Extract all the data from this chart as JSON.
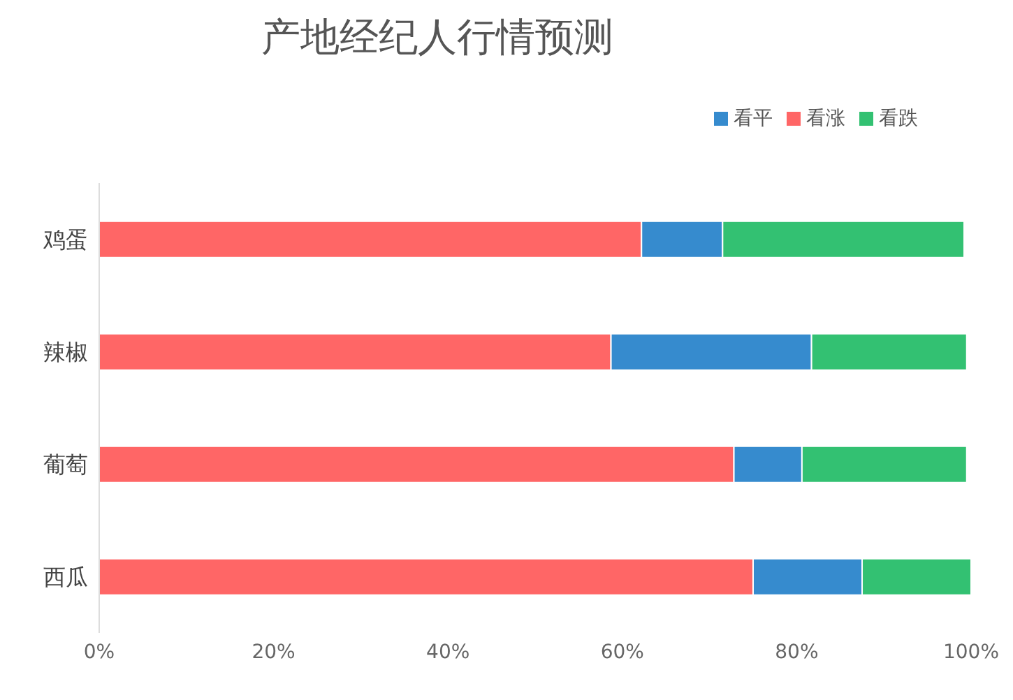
{
  "chart_data": {
    "type": "bar",
    "title": "产地经纪人行情预测",
    "orientation": "horizontal",
    "stacked": true,
    "categories": [
      "鸡蛋",
      "辣椒",
      "葡萄",
      "西瓜"
    ],
    "series": [
      {
        "name": "看涨",
        "color": "#ff6666",
        "values": [
          62.2,
          58.7,
          72.8,
          75
        ]
      },
      {
        "name": "看平",
        "color": "#368bce",
        "values": [
          9.3,
          23,
          7.8,
          12.5
        ]
      },
      {
        "name": "看跌",
        "color": "#33c172",
        "values": [
          27.7,
          17.8,
          18.9,
          12.5
        ]
      }
    ],
    "xlim": [
      0,
      100
    ],
    "xticks": [
      {
        "value": 0,
        "label": "0%"
      },
      {
        "value": 20,
        "label": "20%"
      },
      {
        "value": 40,
        "label": "40%"
      },
      {
        "value": 60,
        "label": "60%"
      },
      {
        "value": 80,
        "label": "80%"
      },
      {
        "value": 100,
        "label": "100%"
      }
    ],
    "legend": "top right",
    "grid": false
  }
}
